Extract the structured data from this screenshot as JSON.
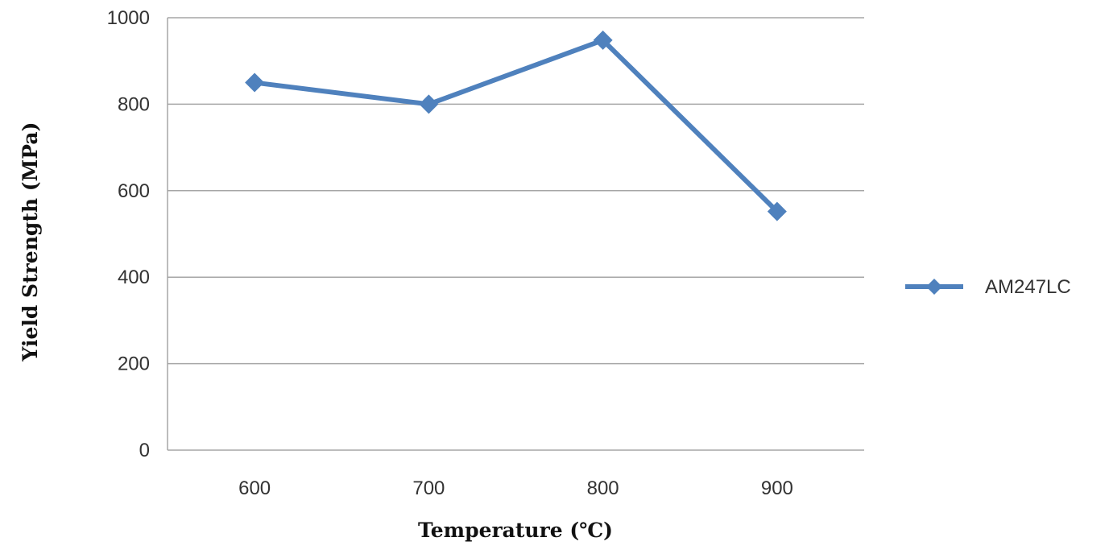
{
  "chart_data": {
    "type": "line",
    "xlabel": "Temperature (℃)",
    "ylabel": "Yield Strength (MPa)",
    "categories": [
      "600",
      "700",
      "800",
      "900"
    ],
    "series": [
      {
        "name": "AM247LC",
        "values": [
          850,
          800,
          948,
          552
        ],
        "color": "#4f81bd",
        "marker": "diamond"
      }
    ],
    "ylim": [
      0,
      1000
    ],
    "yticks": [
      "0",
      "200",
      "400",
      "600",
      "800",
      "1000"
    ],
    "grid": true,
    "legend": "right"
  }
}
